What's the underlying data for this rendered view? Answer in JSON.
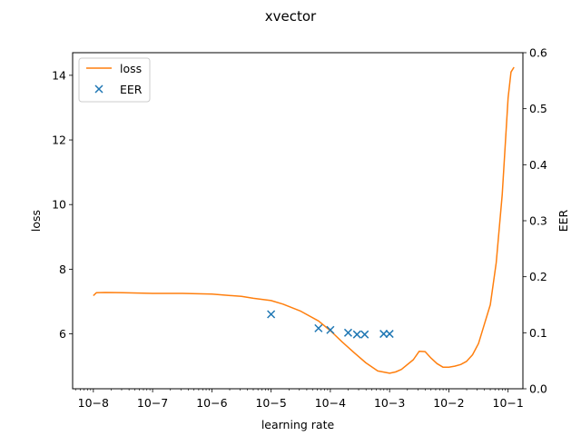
{
  "chart_data": {
    "type": "line",
    "title": "xvector",
    "xlabel": "learning rate",
    "ylabel": "loss",
    "ylabel_right": "EER",
    "xscale": "log",
    "xlim_exp": [
      -8.35,
      -0.75
    ],
    "ylim": [
      4.3,
      14.7
    ],
    "ylim_right": [
      0.0,
      0.6
    ],
    "x_ticks": [
      -8,
      -7,
      -6,
      -5,
      -4,
      -3,
      -2,
      -1
    ],
    "x_tick_labels": [
      "10−8",
      "10−7",
      "10−6",
      "10−5",
      "10−4",
      "10−3",
      "10−2",
      "10−1"
    ],
    "y_ticks": [
      6,
      8,
      10,
      12,
      14
    ],
    "y_tick_labels": [
      "6",
      "8",
      "10",
      "12",
      "14"
    ],
    "y_ticks_right": [
      0.0,
      0.1,
      0.2,
      0.3,
      0.4,
      0.5,
      0.6
    ],
    "y_tick_labels_right": [
      "0.0",
      "0.1",
      "0.2",
      "0.3",
      "0.4",
      "0.5",
      "0.6"
    ],
    "legend_position": "upper-left",
    "series": [
      {
        "name": "loss",
        "kind": "line",
        "axis": "left",
        "color": "#ff7f0e",
        "log_x": [
          -8.0,
          -7.95,
          -7.8,
          -7.5,
          -7.0,
          -6.5,
          -6.0,
          -5.5,
          -5.3,
          -5.0,
          -4.8,
          -4.5,
          -4.2,
          -4.0,
          -3.8,
          -3.6,
          -3.4,
          -3.2,
          -3.0,
          -2.9,
          -2.8,
          -2.6,
          -2.5,
          -2.4,
          -2.3,
          -2.2,
          -2.1,
          -2.0,
          -1.9,
          -1.8,
          -1.7,
          -1.6,
          -1.5,
          -1.4,
          -1.3,
          -1.2,
          -1.1,
          -1.0,
          -0.95,
          -0.9
        ],
        "values": [
          7.18,
          7.27,
          7.28,
          7.27,
          7.25,
          7.25,
          7.23,
          7.16,
          7.1,
          7.03,
          6.92,
          6.7,
          6.4,
          6.1,
          5.75,
          5.42,
          5.1,
          4.85,
          4.78,
          4.82,
          4.9,
          5.2,
          5.46,
          5.45,
          5.25,
          5.08,
          4.97,
          4.97,
          5.0,
          5.05,
          5.15,
          5.35,
          5.7,
          6.3,
          6.9,
          8.2,
          10.3,
          13.3,
          14.1,
          14.25
        ]
      },
      {
        "name": "EER",
        "kind": "scatter",
        "axis": "right",
        "color": "#1f77b4",
        "log_x": [
          -5.0,
          -4.2,
          -4.0,
          -3.7,
          -3.55,
          -3.42,
          -3.1,
          -3.0
        ],
        "values": [
          0.133,
          0.108,
          0.105,
          0.1,
          0.097,
          0.097,
          0.098,
          0.098
        ]
      }
    ]
  }
}
